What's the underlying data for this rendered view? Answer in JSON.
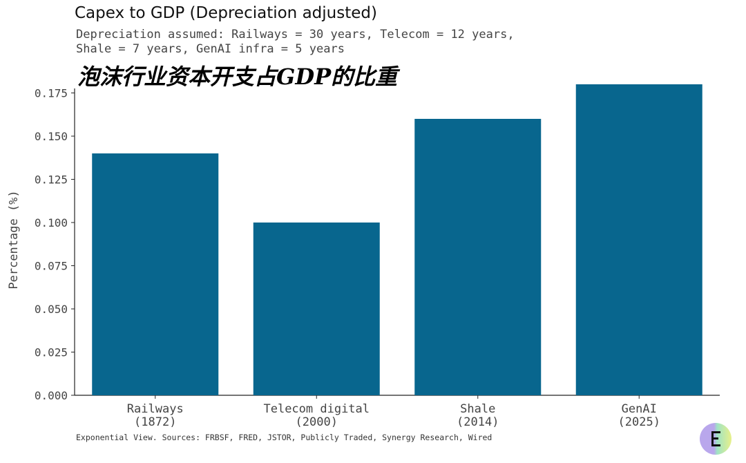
{
  "chart_data": {
    "type": "bar",
    "title": "Capex to GDP (Depreciation adjusted)",
    "subtitle_lines": [
      "Depreciation assumed: Railways = 30 years, Telecom = 12 years,",
      "Shale = 7 years, GenAI infra = 5 years"
    ],
    "title_zh": "泡沫行业资本开支占GDP的比重",
    "categories": [
      [
        "Railways",
        "(1872)"
      ],
      [
        "Telecom digital",
        "(2000)"
      ],
      [
        "Shale",
        "(2014)"
      ],
      [
        "GenAI",
        "(2025)"
      ]
    ],
    "values": [
      0.14,
      0.1,
      0.16,
      0.18
    ],
    "ylabel": "Percentage (%)",
    "xlabel": "",
    "ylim": [
      0,
      0.18
    ],
    "yticks": [
      "0.000",
      "0.025",
      "0.050",
      "0.075",
      "0.100",
      "0.125",
      "0.150",
      "0.175"
    ],
    "bar_color": "#08668e",
    "grid": false,
    "legend": "none"
  },
  "footer": {
    "source": "Exponential View. Sources: FRBSF, FRED, JSTOR, Publicly Traded, Synergy Research, Wired"
  },
  "logo": {
    "icon": "exponential-view-logo-icon",
    "colors": [
      "#b9a7ec",
      "#9fe3c4",
      "#e8f08a"
    ]
  }
}
